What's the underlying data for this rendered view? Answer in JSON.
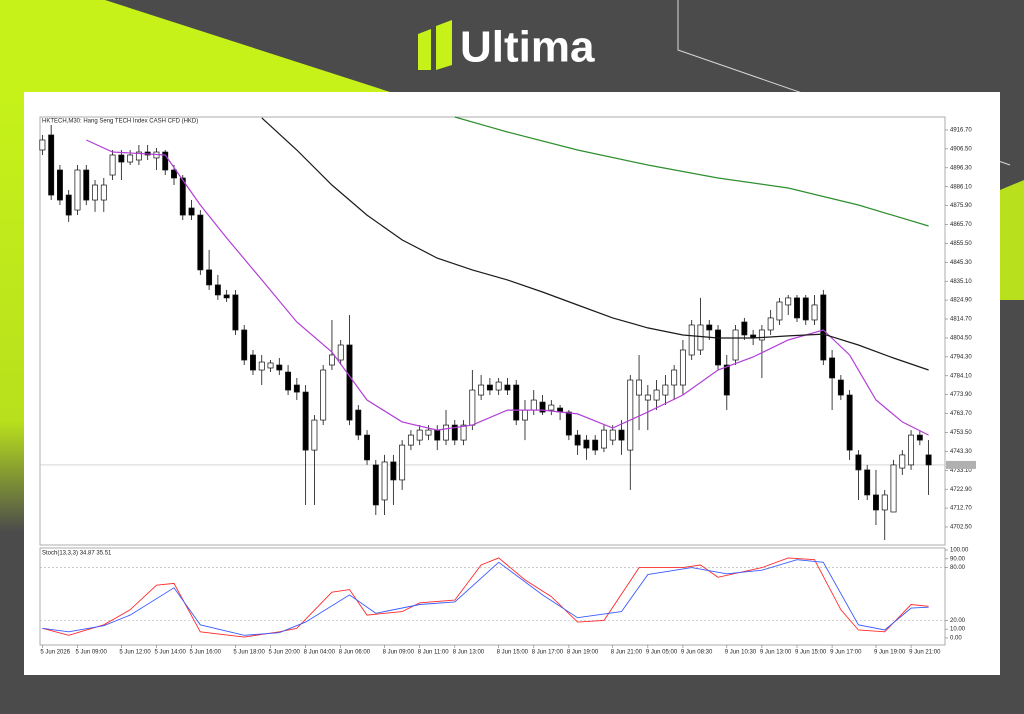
{
  "header": {
    "brand": "Ultima"
  },
  "chart_data": [
    {
      "type": "candlestick",
      "title": "HKTECH,M30: Hang Seng TECH Index CASH CFD (HKD)",
      "categories": [
        "5 Jun 2026",
        null,
        null,
        null,
        "5 Jun 09:00",
        null,
        null,
        null,
        null,
        "5 Jun 12:00",
        null,
        null,
        null,
        "5 Jun 14:00",
        null,
        null,
        null,
        "5 Jun 16:00",
        null,
        null,
        null,
        null,
        "5 Jun 18:00",
        null,
        null,
        null,
        "5 Jun 20:00",
        null,
        null,
        null,
        "8 Jun 04:00",
        null,
        null,
        null,
        "8 Jun 06:00",
        null,
        null,
        null,
        null,
        "8 Jun 09:00",
        null,
        null,
        null,
        "8 Jun 11:00",
        null,
        null,
        null,
        "8 Jun 13:00",
        null,
        null,
        null,
        null,
        "8 Jun 15:00",
        null,
        null,
        null,
        "8 Jun 17:00",
        null,
        null,
        null,
        "8 Jun 19:00",
        null,
        null,
        null,
        null,
        "8 Jun 21:00",
        null,
        null,
        null,
        "9 Jun 05:00",
        null,
        null,
        null,
        "9 Jun 08:30",
        null,
        null,
        null,
        null,
        "9 Jun 10:30",
        null,
        null,
        null,
        "9 Jun 13:00",
        null,
        null,
        null,
        "9 Jun 15:00",
        null,
        null,
        null,
        "9 Jun 17:00",
        null,
        null,
        null,
        null,
        "9 Jun 19:00",
        null,
        null,
        null,
        "9 Jun 21:00",
        null,
        null
      ],
      "open": [
        4905.9,
        4914.0,
        4895.1,
        4881.6,
        4873.5,
        4895.1,
        4878.9,
        4878.9,
        4892.4,
        4903.2,
        4899.4,
        4900.5,
        4904.8,
        4901.6,
        4904.8,
        4895.1,
        4890.8,
        4874.6,
        4870.8,
        4841.2,
        4833.1,
        4827.7,
        4827.7,
        4808.8,
        4795.3,
        4787.2,
        4788.3,
        4789.9,
        4786.1,
        4779.1,
        4775.3,
        4744.0,
        4760.2,
        4789.9,
        4792.6,
        4800.7,
        4765.6,
        4752.1,
        4736.0,
        4717.1,
        4737.6,
        4727.9,
        4746.7,
        4749.4,
        4752.1,
        4754.8,
        4749.4,
        4757.5,
        4749.4,
        4757.5,
        4773.7,
        4779.1,
        4776.4,
        4779.1,
        4779.1,
        4760.2,
        4765.6,
        4769.9,
        4765.6,
        4766.7,
        4764.5,
        4752.1,
        4749.4,
        4749.4,
        4745.1,
        4749.4,
        4754.8,
        4744.0,
        4773.7,
        4771.0,
        4771.0,
        4773.7,
        4779.1,
        4779.1,
        4795.3,
        4798.0,
        4811.5,
        4808.8,
        4789.9,
        4792.6,
        4813.1,
        4806.1,
        4803.4,
        4808.8,
        4814.2,
        4822.3,
        4826.1,
        4826.1,
        4814.2,
        4827.7,
        4793.7,
        4781.8,
        4773.7,
        4741.4,
        4733.3,
        4719.8,
        4711.7,
        4710.6,
        4734.3,
        4736.0,
        4752.1,
        4741.4
      ],
      "high": [
        4914.0,
        4919.4,
        4897.8,
        4884.3,
        4897.8,
        4897.8,
        4889.7,
        4890.8,
        4905.9,
        4905.9,
        4905.9,
        4908.6,
        4908.6,
        4907.0,
        4905.9,
        4897.8,
        4892.4,
        4878.9,
        4873.5,
        4852.0,
        4838.5,
        4830.4,
        4830.4,
        4811.5,
        4798.0,
        4795.3,
        4792.6,
        4793.7,
        4789.9,
        4782.9,
        4779.1,
        4762.9,
        4789.9,
        4814.2,
        4803.4,
        4816.9,
        4768.3,
        4754.8,
        4738.7,
        4741.4,
        4741.4,
        4749.4,
        4754.8,
        4757.5,
        4757.5,
        4757.5,
        4765.6,
        4760.2,
        4760.2,
        4787.2,
        4784.5,
        4782.9,
        4782.9,
        4782.9,
        4781.8,
        4771.0,
        4776.4,
        4773.7,
        4771.0,
        4768.3,
        4765.6,
        4754.8,
        4752.1,
        4752.1,
        4757.5,
        4757.5,
        4760.2,
        4784.5,
        4795.3,
        4779.1,
        4781.8,
        4784.5,
        4789.9,
        4803.4,
        4814.2,
        4826.1,
        4814.2,
        4811.5,
        4795.3,
        4811.5,
        4815.3,
        4808.8,
        4811.5,
        4819.6,
        4826.1,
        4827.7,
        4827.7,
        4827.7,
        4827.7,
        4830.4,
        4798.0,
        4784.5,
        4776.4,
        4744.0,
        4736.0,
        4733.3,
        4722.5,
        4738.7,
        4744.0,
        4754.8,
        4754.8,
        4749.4
      ],
      "low": [
        4903.2,
        4878.9,
        4876.2,
        4867.1,
        4870.8,
        4876.2,
        4872.5,
        4872.5,
        4889.7,
        4889.7,
        4897.8,
        4897.8,
        4900.5,
        4895.1,
        4892.4,
        4887.0,
        4868.1,
        4868.1,
        4838.5,
        4830.4,
        4825.0,
        4823.9,
        4806.1,
        4789.9,
        4784.5,
        4779.1,
        4786.1,
        4784.5,
        4773.7,
        4771.0,
        4714.4,
        4714.4,
        4757.5,
        4787.2,
        4789.9,
        4757.5,
        4749.4,
        4736.0,
        4709.0,
        4709.0,
        4714.4,
        4722.5,
        4744.0,
        4746.7,
        4749.4,
        4744.0,
        4746.7,
        4746.7,
        4746.7,
        4754.8,
        4771.0,
        4773.7,
        4773.7,
        4773.7,
        4757.5,
        4749.4,
        4762.9,
        4762.9,
        4762.9,
        4760.2,
        4749.4,
        4741.4,
        4738.7,
        4741.4,
        4742.9,
        4746.7,
        4741.4,
        4722.5,
        4754.8,
        4754.8,
        4765.6,
        4768.3,
        4771.0,
        4773.7,
        4792.6,
        4795.3,
        4803.4,
        4787.2,
        4765.6,
        4789.9,
        4803.4,
        4800.7,
        4782.9,
        4806.1,
        4811.5,
        4816.9,
        4813.1,
        4811.5,
        4811.5,
        4789.9,
        4765.6,
        4771.0,
        4738.7,
        4717.1,
        4717.1,
        4703.6,
        4695.5,
        4710.6,
        4730.6,
        4733.3,
        4746.7,
        4719.8
      ],
      "close": [
        4911.3,
        4881.6,
        4878.9,
        4870.8,
        4895.1,
        4878.9,
        4887.0,
        4887.0,
        4903.2,
        4899.4,
        4903.2,
        4904.8,
        4903.2,
        4904.8,
        4895.1,
        4890.8,
        4870.8,
        4870.8,
        4841.2,
        4833.1,
        4827.7,
        4826.1,
        4808.8,
        4792.6,
        4787.2,
        4791.5,
        4791.0,
        4787.2,
        4776.4,
        4775.3,
        4744.0,
        4760.2,
        4787.2,
        4795.3,
        4800.7,
        4760.2,
        4752.1,
        4738.7,
        4714.4,
        4737.6,
        4727.9,
        4746.7,
        4752.1,
        4754.8,
        4754.8,
        4749.4,
        4757.5,
        4749.4,
        4757.5,
        4776.4,
        4779.1,
        4776.4,
        4780.7,
        4776.4,
        4760.2,
        4765.6,
        4771.0,
        4764.5,
        4768.3,
        4764.5,
        4752.1,
        4746.7,
        4745.1,
        4744.0,
        4754.8,
        4754.8,
        4749.4,
        4781.8,
        4781.8,
        4773.7,
        4776.4,
        4779.1,
        4787.2,
        4798.0,
        4811.5,
        4811.5,
        4808.8,
        4789.9,
        4773.7,
        4808.8,
        4806.1,
        4804.5,
        4808.8,
        4815.3,
        4823.9,
        4826.1,
        4815.3,
        4814.2,
        4822.3,
        4792.6,
        4782.9,
        4773.7,
        4744.0,
        4733.3,
        4719.8,
        4711.7,
        4719.8,
        4736.0,
        4741.4,
        4752.1,
        4749.4,
        4736.0
      ],
      "up_color": "#ffffff",
      "down_color": "#000000",
      "lines": [
        {
          "color": "#b23fd6",
          "x": [
            5,
            8,
            14,
            18,
            21,
            25,
            29,
            33,
            37,
            41,
            45,
            49,
            53,
            57,
            61,
            65,
            69,
            73,
            77,
            81,
            85,
            89,
            92,
            95,
            98,
            101
          ],
          "values": [
            4911.3,
            4904.8,
            4903.2,
            4876.2,
            4858.4,
            4835.8,
            4813.1,
            4796.9,
            4771.0,
            4759.2,
            4754.8,
            4757.5,
            4765.6,
            4765.6,
            4763.5,
            4755.9,
            4764.5,
            4773.7,
            4787.2,
            4794.2,
            4803.4,
            4808.8,
            4795.3,
            4771.0,
            4759.2,
            4752.1
          ]
        },
        {
          "color": "#1a1a1a",
          "x": [
            25,
            29,
            33,
            37,
            41,
            45,
            49,
            53,
            57,
            61,
            65,
            69,
            73,
            77,
            81,
            85,
            89,
            93,
            97,
            101
          ],
          "values": [
            4923.2,
            4905.9,
            4887.0,
            4870.8,
            4857.4,
            4847.6,
            4841.2,
            4835.8,
            4829.3,
            4822.3,
            4815.3,
            4809.9,
            4806.1,
            4804.5,
            4804.5,
            4805.6,
            4806.6,
            4800.7,
            4793.7,
            4787.2
          ]
        },
        {
          "color": "#2f8f2f",
          "x": [
            47,
            53,
            61,
            69,
            77,
            85,
            93,
            101
          ],
          "values": [
            4923.7,
            4915.6,
            4905.9,
            4897.8,
            4890.8,
            4885.4,
            4876.2,
            4864.9
          ]
        }
      ],
      "xlim": [
        -0.5,
        101.5
      ],
      "ylim": [
        4692.8,
        4923.7
      ],
      "yticks": [
        {
          "value": 4916.7,
          "label": "4916.70"
        },
        {
          "value": 4906.5,
          "label": "4906.50"
        },
        {
          "value": 4896.3,
          "label": "4896.30"
        },
        {
          "value": 4886.1,
          "label": "4886.10"
        },
        {
          "value": 4875.9,
          "label": "4875.90"
        },
        {
          "value": 4865.7,
          "label": "4865.70"
        },
        {
          "value": 4855.5,
          "label": "4855.50"
        },
        {
          "value": 4845.3,
          "label": "4845.30"
        },
        {
          "value": 4835.1,
          "label": "4835.10"
        },
        {
          "value": 4824.9,
          "label": "4824.90"
        },
        {
          "value": 4814.7,
          "label": "4814.70"
        },
        {
          "value": 4804.5,
          "label": "4804.50"
        },
        {
          "value": 4794.3,
          "label": "4794.30"
        },
        {
          "value": 4784.1,
          "label": "4784.10"
        },
        {
          "value": 4773.9,
          "label": "4773.90"
        },
        {
          "value": 4763.7,
          "label": "4763.70"
        },
        {
          "value": 4753.5,
          "label": "4753.50"
        },
        {
          "value": 4743.3,
          "label": "4743.30"
        },
        {
          "value": 4733.1,
          "label": "4733.10"
        },
        {
          "value": 4722.9,
          "label": "4722.90"
        },
        {
          "value": 4712.7,
          "label": "4712.70"
        },
        {
          "value": 4702.5,
          "label": "4702.50"
        }
      ]
    },
    {
      "type": "line",
      "title": "Stoch(13,3,3) 34.87 35.51",
      "series": [
        {
          "color": "#ff2a2a",
          "x": [
            0,
            3,
            7,
            10,
            13,
            15,
            18,
            23,
            27,
            29,
            33,
            35,
            37,
            41,
            43,
            47,
            50,
            52,
            55,
            58,
            61,
            64,
            68,
            73,
            75,
            77,
            82,
            85,
            88,
            91,
            93,
            96,
            99,
            101
          ],
          "values": [
            11,
            3,
            15,
            32,
            60,
            62,
            7,
            1,
            7,
            11,
            52,
            55,
            26,
            30,
            40,
            43,
            83,
            91,
            66,
            47,
            18,
            20,
            80,
            80,
            83,
            69,
            80,
            91,
            89,
            32,
            9,
            7,
            38,
            36
          ]
        },
        {
          "color": "#3a5bff",
          "x": [
            0,
            3,
            7,
            10,
            15,
            18,
            23,
            27,
            30,
            35,
            38,
            43,
            47,
            52,
            57,
            61,
            66,
            69,
            74,
            78,
            82,
            86,
            89,
            93,
            96,
            99,
            101
          ],
          "values": [
            11,
            7,
            14,
            26,
            57,
            15,
            3,
            6,
            18,
            49,
            28,
            38,
            41,
            86,
            49,
            23,
            30,
            72,
            80,
            73,
            77,
            89,
            86,
            15,
            9,
            34,
            35
          ]
        }
      ],
      "levels": [
        20,
        80
      ],
      "xlim": [
        -0.5,
        101.5
      ],
      "ylim": [
        -8,
        102.3
      ],
      "yticks": [
        {
          "value": 100,
          "label": "100.00"
        },
        {
          "value": 90,
          "label": "90.00"
        },
        {
          "value": 80,
          "label": "80.00"
        },
        {
          "value": 20,
          "label": "20.00"
        },
        {
          "value": 10,
          "label": "10.00"
        },
        {
          "value": 0,
          "label": "0.00"
        }
      ]
    }
  ]
}
